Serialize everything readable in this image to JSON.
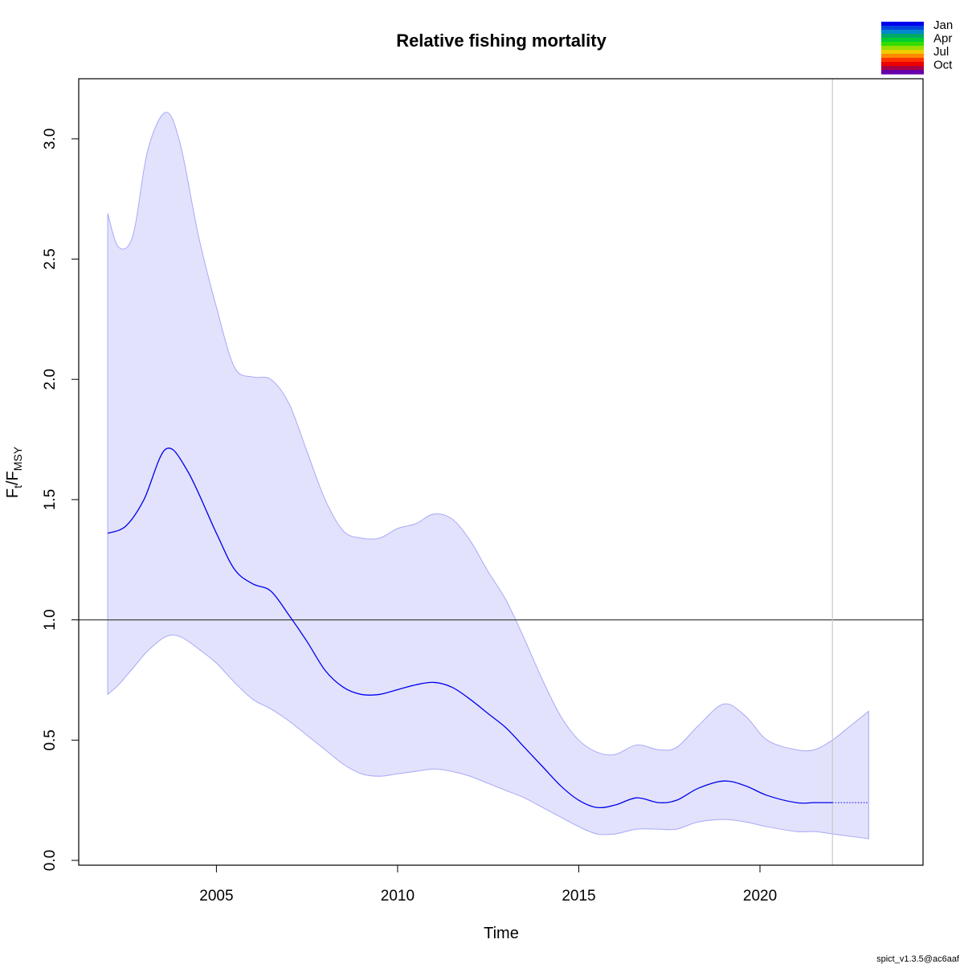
{
  "chart_data": {
    "type": "line",
    "title": "Relative fishing mortality",
    "xlabel": "Time",
    "ylabel_main": "F",
    "ylabel_sub1": "t",
    "ylabel_sep": "/F",
    "ylabel_sub2": "MSY",
    "xlim": [
      2001.2,
      2024.5
    ],
    "ylim": [
      -0.02,
      3.25
    ],
    "x_ticks": [
      2005,
      2010,
      2015,
      2020
    ],
    "y_ticks": [
      0.0,
      0.5,
      1.0,
      1.5,
      2.0,
      2.5,
      3.0
    ],
    "y_tick_labels": [
      "0.0",
      "0.5",
      "1.0",
      "1.5",
      "2.0",
      "2.5",
      "3.0"
    ],
    "reference_line": 1.0,
    "last_observation_x": 2022.0,
    "series": [
      {
        "role": "estimate",
        "color": "#0000ee",
        "x": [
          2002.0,
          2002.5,
          2003.0,
          2003.6,
          2004.2,
          2005.0,
          2005.5,
          2006.0,
          2006.5,
          2007.0,
          2007.5,
          2008.0,
          2008.5,
          2009.0,
          2009.5,
          2010.0,
          2010.5,
          2011.0,
          2011.5,
          2012.0,
          2012.5,
          2013.0,
          2013.5,
          2014.0,
          2014.5,
          2015.0,
          2015.5,
          2016.0,
          2016.6,
          2017.2,
          2017.7,
          2018.3,
          2019.0,
          2019.6,
          2020.2,
          2021.0,
          2021.5,
          2022.0
        ],
        "y": [
          1.36,
          1.39,
          1.5,
          1.71,
          1.62,
          1.36,
          1.21,
          1.15,
          1.12,
          1.02,
          0.91,
          0.79,
          0.72,
          0.69,
          0.69,
          0.71,
          0.73,
          0.74,
          0.72,
          0.67,
          0.61,
          0.55,
          0.47,
          0.39,
          0.31,
          0.25,
          0.22,
          0.23,
          0.26,
          0.24,
          0.25,
          0.3,
          0.33,
          0.31,
          0.27,
          0.24,
          0.24,
          0.24
        ]
      },
      {
        "role": "forecast",
        "color": "#0000ee",
        "x": [
          2022.0,
          2023.0
        ],
        "y": [
          0.24,
          0.24
        ]
      }
    ],
    "confidence_band": {
      "fill": "#e2e2fc",
      "stroke": "#a9a9f7",
      "x": [
        2002.0,
        2002.3,
        2002.7,
        2003.1,
        2003.6,
        2004.0,
        2004.5,
        2005.0,
        2005.5,
        2006.0,
        2006.5,
        2007.0,
        2007.5,
        2008.0,
        2008.5,
        2009.0,
        2009.5,
        2010.0,
        2010.5,
        2011.0,
        2011.5,
        2012.0,
        2012.5,
        2013.0,
        2013.5,
        2014.0,
        2014.5,
        2015.0,
        2015.5,
        2016.0,
        2016.6,
        2017.2,
        2017.7,
        2018.3,
        2019.0,
        2019.6,
        2020.2,
        2021.0,
        2021.5,
        2022.0,
        2022.5,
        2023.0
      ],
      "upper": [
        2.69,
        2.55,
        2.6,
        2.95,
        3.11,
        2.98,
        2.6,
        2.3,
        2.05,
        2.01,
        2.0,
        1.9,
        1.7,
        1.5,
        1.37,
        1.34,
        1.34,
        1.38,
        1.4,
        1.44,
        1.42,
        1.33,
        1.2,
        1.08,
        0.92,
        0.75,
        0.6,
        0.5,
        0.45,
        0.44,
        0.48,
        0.46,
        0.47,
        0.56,
        0.65,
        0.6,
        0.5,
        0.46,
        0.46,
        0.5,
        0.56,
        0.62
      ],
      "lower": [
        0.69,
        0.73,
        0.8,
        0.87,
        0.93,
        0.93,
        0.88,
        0.82,
        0.74,
        0.67,
        0.63,
        0.58,
        0.52,
        0.46,
        0.4,
        0.36,
        0.35,
        0.36,
        0.37,
        0.38,
        0.37,
        0.35,
        0.32,
        0.29,
        0.26,
        0.22,
        0.18,
        0.14,
        0.11,
        0.11,
        0.13,
        0.13,
        0.13,
        0.16,
        0.17,
        0.16,
        0.14,
        0.12,
        0.12,
        0.11,
        0.1,
        0.09
      ]
    },
    "legend": {
      "placement": "top-right",
      "labels": [
        "Jan",
        "Apr",
        "Jul",
        "Oct"
      ],
      "colors": [
        "#0000ee",
        "#0044dd",
        "#0088cc",
        "#00aa66",
        "#00cc33",
        "#33dd00",
        "#99dd00",
        "#eecc00",
        "#ff8800",
        "#ff3300",
        "#ee0000",
        "#aa0044",
        "#6600aa"
      ]
    }
  },
  "footer": "spict_v1.3.5@ac6aaf"
}
